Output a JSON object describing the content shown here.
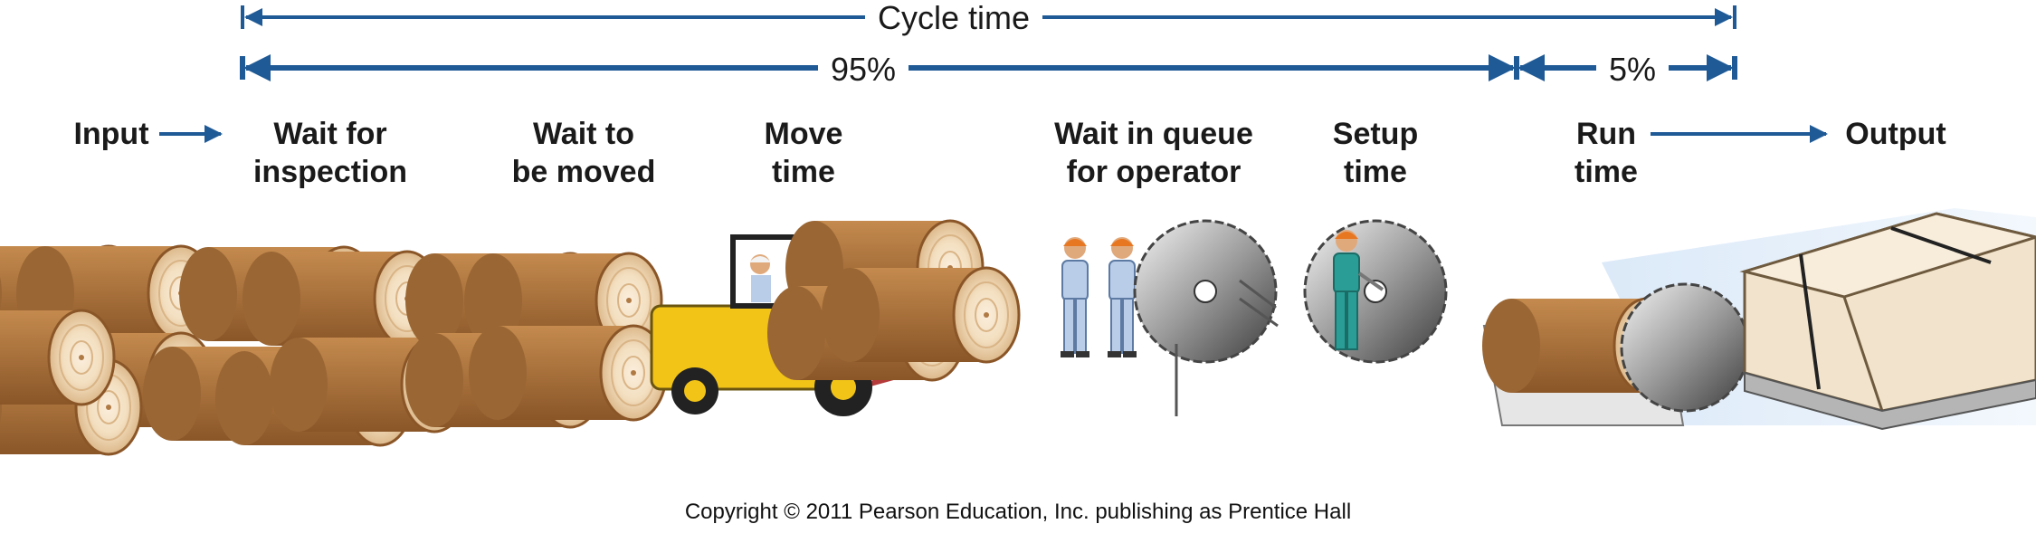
{
  "measures": {
    "cycle_time": "Cycle time",
    "wait_share": "95%",
    "run_share": "5%"
  },
  "steps": {
    "input": "Input",
    "wait_inspection_1": "Wait for",
    "wait_inspection_2": "inspection",
    "wait_moved_1": "Wait to",
    "wait_moved_2": "be moved",
    "move_1": "Move",
    "move_2": "time",
    "queue_1": "Wait in queue",
    "queue_2": "for operator",
    "setup_1": "Setup",
    "setup_2": "time",
    "run_1": "Run",
    "run_2": "time",
    "output": "Output"
  },
  "copyright": "Copyright © 2011 Pearson Education, Inc. publishing as Prentice Hall",
  "colors": {
    "arrow": "#1f5a96",
    "wood_bark": "#a8703a",
    "wood_face": "#f3dfc0",
    "forklift": "#f2c418",
    "shirt": "#b9cde8",
    "overalls": "#2a9e96",
    "helmet": "#e87722"
  }
}
